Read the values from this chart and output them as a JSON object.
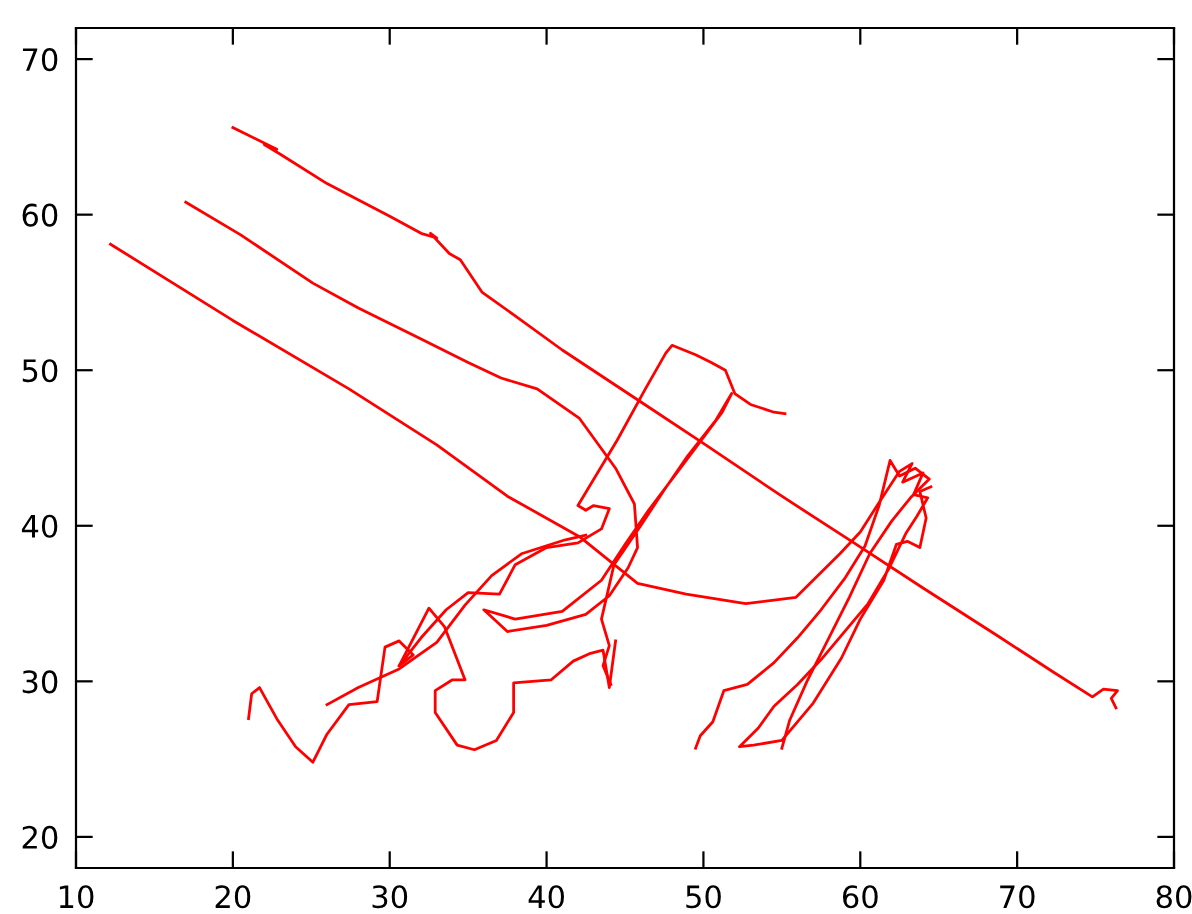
{
  "chart_data": {
    "type": "line",
    "xlim": [
      10,
      80
    ],
    "ylim": [
      18,
      72
    ],
    "xticks": [
      10,
      20,
      30,
      40,
      50,
      60,
      70,
      80
    ],
    "yticks": [
      20,
      30,
      40,
      50,
      60,
      70
    ],
    "grid": false,
    "marker": "none",
    "line_style": "solid",
    "series": [
      {
        "color": "#ff0000",
        "x": [
          20.0,
          22.8,
          22.0,
          23.0,
          26,
          30,
          32.0,
          33.0,
          32.6,
          33.8,
          34.5,
          35.9,
          38,
          41,
          45.8,
          50,
          55,
          59.6,
          64,
          68.8,
          72.3,
          74.8,
          75.5,
          76.4,
          76.0,
          76.3
        ],
        "values": [
          65.6,
          64.2,
          64.5,
          63.9,
          62.0,
          59.9,
          58.8,
          58.5,
          58.8,
          57.5,
          57.1,
          55.0,
          53.5,
          51.3,
          48.1,
          45.3,
          41.9,
          38.9,
          36.0,
          32.9,
          30.6,
          29.0,
          29.5,
          29.4,
          28.9,
          28.3
        ]
      },
      {
        "color": "#ff0000",
        "x": [
          17.0,
          20.5,
          25.1,
          28,
          32.0,
          35,
          37.1,
          39.4,
          42.1,
          44.4,
          45.6,
          45.8,
          45.2,
          44.0,
          42.5,
          40,
          37.5,
          36,
          38,
          41,
          43.5,
          45,
          46.5,
          48,
          49.5,
          51.2,
          51.8,
          50.8,
          49,
          47.5,
          46,
          44.3,
          43.5,
          44.0,
          43.6,
          44.1
        ],
        "values": [
          60.8,
          58.7,
          55.6,
          54.0,
          52.0,
          50.5,
          49.5,
          48.8,
          46.9,
          43.7,
          41.4,
          38.6,
          37.3,
          35.5,
          34.3,
          33.6,
          33.2,
          34.6,
          34.0,
          34.5,
          36.5,
          38.8,
          41,
          43,
          45,
          47.3,
          48.5,
          46.8,
          44.5,
          42.3,
          40.0,
          37.5,
          34.0,
          32.3,
          31.0,
          29.8
        ]
      },
      {
        "color": "#ff0000",
        "x": [
          12.2,
          20,
          27.4,
          33,
          37.5,
          42.1,
          45.8,
          48.9,
          52.7,
          55.9,
          58.7,
          60.0,
          61.2,
          62.5,
          63.3,
          62.7,
          64.0,
          63.4,
          64.3,
          63.6,
          62.9,
          61.8,
          60.5,
          59,
          57.5,
          56,
          54.5,
          53.5,
          52.3,
          53.2,
          55.0,
          57,
          58.8,
          60.0,
          61.5,
          62.3,
          63.0,
          63.8,
          64.2,
          63.8,
          64.5
        ],
        "values": [
          58.1,
          53.2,
          48.8,
          45.2,
          41.9,
          39.3,
          36.3,
          35.6,
          35.0,
          35.4,
          38.2,
          39.6,
          41.5,
          43.5,
          44.0,
          42.8,
          43.4,
          42.0,
          41.8,
          40.6,
          39.5,
          37.2,
          35.0,
          33.2,
          31.4,
          29.8,
          28.4,
          27.0,
          25.8,
          25.9,
          26.2,
          28.6,
          31.5,
          34.0,
          36.5,
          38.8,
          39.0,
          38.6,
          40.5,
          42.2,
          42.5
        ]
      },
      {
        "color": "#ff0000",
        "x": [
          49.5,
          49.8,
          50.6,
          51.3,
          52.8,
          54.5,
          56,
          57.5,
          59,
          60.3,
          61.2,
          61.9,
          62.5,
          63.5,
          64.4,
          63.2,
          62.0,
          60.6,
          59.3,
          58,
          56.6,
          55.5,
          55.0
        ],
        "values": [
          25.7,
          26.5,
          27.4,
          29.4,
          29.8,
          31.2,
          32.8,
          34.6,
          36.6,
          38.7,
          41.3,
          44.2,
          43.2,
          43.7,
          43.0,
          41.8,
          40.3,
          38.2,
          35.4,
          32.8,
          30.0,
          27.5,
          25.7
        ]
      },
      {
        "color": "#ff0000",
        "x": [
          21.0,
          21.2,
          21.7,
          22.8,
          24,
          25.1,
          25.4,
          26.0,
          27.4,
          29.2,
          29.7,
          30.6,
          31.5,
          30.6,
          32,
          33.6,
          35,
          37,
          38,
          40,
          42,
          43.5,
          44.0,
          43.0,
          42.5,
          42.0,
          44.5,
          46.3,
          47.6,
          48.0,
          49.5,
          50.5,
          51.4,
          52.0,
          53.0,
          54.5,
          55.2
        ],
        "values": [
          27.6,
          29.2,
          29.6,
          27.6,
          25.8,
          24.8,
          25.4,
          26.6,
          28.5,
          28.7,
          32.2,
          32.6,
          31.7,
          31.0,
          32.8,
          34.6,
          35.7,
          35.6,
          37.5,
          38.6,
          38.9,
          39.8,
          41.1,
          41.3,
          41.0,
          41.3,
          45.5,
          48.8,
          51.1,
          51.6,
          51.0,
          50.5,
          50.0,
          48.5,
          47.8,
          47.3,
          47.2
        ]
      },
      {
        "color": "#ff0000",
        "x": [
          26.0,
          28,
          30.6,
          33,
          34.8,
          36.5,
          38.4,
          41.2,
          42.5
        ],
        "values": [
          28.5,
          29.6,
          30.8,
          32.5,
          34.9,
          36.8,
          38.2,
          39.1,
          39.4
        ]
      },
      {
        "color": "#ff0000",
        "x": [
          30.6,
          32.5,
          33.5,
          34.8,
          34.0,
          32.9,
          32.9,
          34.3,
          35.4,
          36.8,
          37.9,
          37.9,
          40.3,
          41.7,
          42.8,
          43.6,
          44.0,
          44.4
        ],
        "values": [
          31.0,
          34.7,
          33.5,
          30.1,
          30.1,
          29.4,
          28.0,
          25.9,
          25.6,
          26.2,
          28.0,
          29.9,
          30.1,
          31.3,
          31.8,
          32.0,
          29.6,
          32.6
        ]
      }
    ]
  }
}
